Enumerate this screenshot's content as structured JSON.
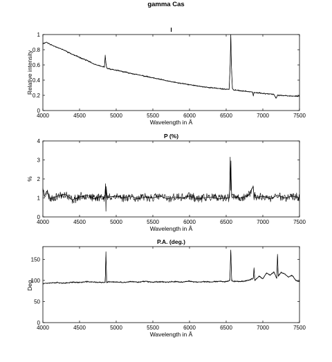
{
  "figure_title": "gamma Cas",
  "chart_data": [
    {
      "type": "line",
      "title": "I",
      "xlabel": "Wavelength in Å",
      "ylabel": "Relative intensity",
      "xlim": [
        4000,
        7500
      ],
      "ylim": [
        0,
        1
      ],
      "xticks": [
        4000,
        4500,
        5000,
        5500,
        6000,
        6500,
        7000,
        7500
      ],
      "yticks": [
        0,
        0.2,
        0.4,
        0.6,
        0.8,
        1
      ],
      "yticklabels": [
        "0",
        "0.2",
        "0.4",
        "0.6",
        "0.8",
        "1"
      ],
      "series": [
        {
          "x": [
            4000,
            4050,
            4100,
            4200,
            4300,
            4400,
            4500,
            4600,
            4700,
            4800,
            4840,
            4850,
            4860,
            4870,
            4900,
            5000,
            5100,
            5200,
            5300,
            5400,
            5500,
            5600,
            5700,
            5800,
            5900,
            6000,
            6100,
            6200,
            6300,
            6400,
            6500,
            6540,
            6555,
            6563,
            6571,
            6585,
            6600,
            6700,
            6800,
            6860,
            6870,
            6880,
            6900,
            7000,
            7100,
            7150,
            7180,
            7200,
            7250,
            7300,
            7400,
            7500
          ],
          "y": [
            0.88,
            0.9,
            0.87,
            0.83,
            0.79,
            0.74,
            0.7,
            0.66,
            0.61,
            0.58,
            0.57,
            0.73,
            0.62,
            0.56,
            0.55,
            0.53,
            0.51,
            0.49,
            0.47,
            0.45,
            0.43,
            0.41,
            0.39,
            0.37,
            0.355,
            0.34,
            0.325,
            0.31,
            0.3,
            0.29,
            0.28,
            0.28,
            0.6,
            1.0,
            0.6,
            0.29,
            0.27,
            0.26,
            0.25,
            0.245,
            0.19,
            0.24,
            0.235,
            0.225,
            0.22,
            0.215,
            0.16,
            0.2,
            0.2,
            0.195,
            0.19,
            0.19
          ]
        }
      ]
    },
    {
      "type": "line",
      "title": "P (%)",
      "xlabel": "Wavelength in Å",
      "ylabel": "%",
      "xlim": [
        4000,
        7500
      ],
      "ylim": [
        0,
        4
      ],
      "xticks": [
        4000,
        4500,
        5000,
        5500,
        6000,
        6500,
        7000,
        7500
      ],
      "yticks": [
        0,
        1,
        2,
        3,
        4
      ],
      "yticklabels": [
        "0",
        "1",
        "2",
        "3",
        "4"
      ],
      "series": [
        {
          "x": [
            4000,
            4020,
            4050,
            4100,
            4200,
            4300,
            4400,
            4500,
            4600,
            4700,
            4800,
            4845,
            4855,
            4860,
            4865,
            4875,
            4900,
            5000,
            5100,
            5200,
            5300,
            5400,
            5500,
            5600,
            5700,
            5800,
            5900,
            6000,
            6100,
            6200,
            6300,
            6400,
            6500,
            6545,
            6555,
            6560,
            6565,
            6570,
            6580,
            6600,
            6700,
            6800,
            6870,
            6880,
            6890,
            6900,
            7000,
            7100,
            7200,
            7300,
            7400,
            7500
          ],
          "y": [
            1.5,
            1.1,
            1.35,
            0.95,
            1.1,
            1.2,
            0.9,
            1.05,
            1.15,
            0.95,
            1.1,
            1.0,
            1.75,
            0.3,
            1.6,
            1.0,
            1.05,
            1.1,
            1.0,
            1.1,
            0.95,
            1.05,
            1.0,
            1.1,
            0.95,
            1.05,
            1.0,
            1.1,
            0.95,
            1.0,
            1.05,
            0.95,
            1.0,
            1.0,
            3.15,
            1.4,
            2.95,
            1.5,
            1.0,
            1.05,
            1.0,
            1.1,
            1.6,
            0.9,
            1.3,
            1.0,
            1.1,
            0.95,
            1.15,
            1.0,
            1.1,
            1.0
          ]
        }
      ]
    },
    {
      "type": "line",
      "title": "P.A. (deg.)",
      "xlabel": "Wavelength in Å",
      "ylabel": "Deg.",
      "xlim": [
        4000,
        7500
      ],
      "ylim": [
        0,
        180
      ],
      "xticks": [
        4000,
        4500,
        5000,
        5500,
        6000,
        6500,
        7000,
        7500
      ],
      "yticks": [
        0,
        50,
        100,
        150
      ],
      "yticklabels": [
        "0",
        "50",
        "100",
        "150"
      ],
      "series": [
        {
          "x": [
            4000,
            4100,
            4200,
            4300,
            4400,
            4500,
            4600,
            4700,
            4800,
            4850,
            4860,
            4870,
            4900,
            5000,
            5100,
            5200,
            5300,
            5400,
            5500,
            5600,
            5700,
            5800,
            5900,
            6000,
            6100,
            6200,
            6300,
            6400,
            6500,
            6550,
            6563,
            6575,
            6600,
            6700,
            6800,
            6870,
            6880,
            6890,
            6950,
            7000,
            7050,
            7100,
            7150,
            7190,
            7200,
            7210,
            7250,
            7300,
            7350,
            7400,
            7450,
            7500
          ],
          "y": [
            93,
            94,
            95,
            93,
            96,
            95,
            97,
            96,
            95,
            95,
            168,
            95,
            97,
            96,
            95,
            97,
            96,
            98,
            96,
            97,
            96,
            97,
            96,
            98,
            96,
            97,
            96,
            98,
            97,
            100,
            172,
            99,
            98,
            97,
            100,
            105,
            130,
            100,
            110,
            104,
            118,
            112,
            120,
            105,
            162,
            110,
            119,
            115,
            108,
            112,
            100,
            97
          ]
        }
      ]
    }
  ]
}
